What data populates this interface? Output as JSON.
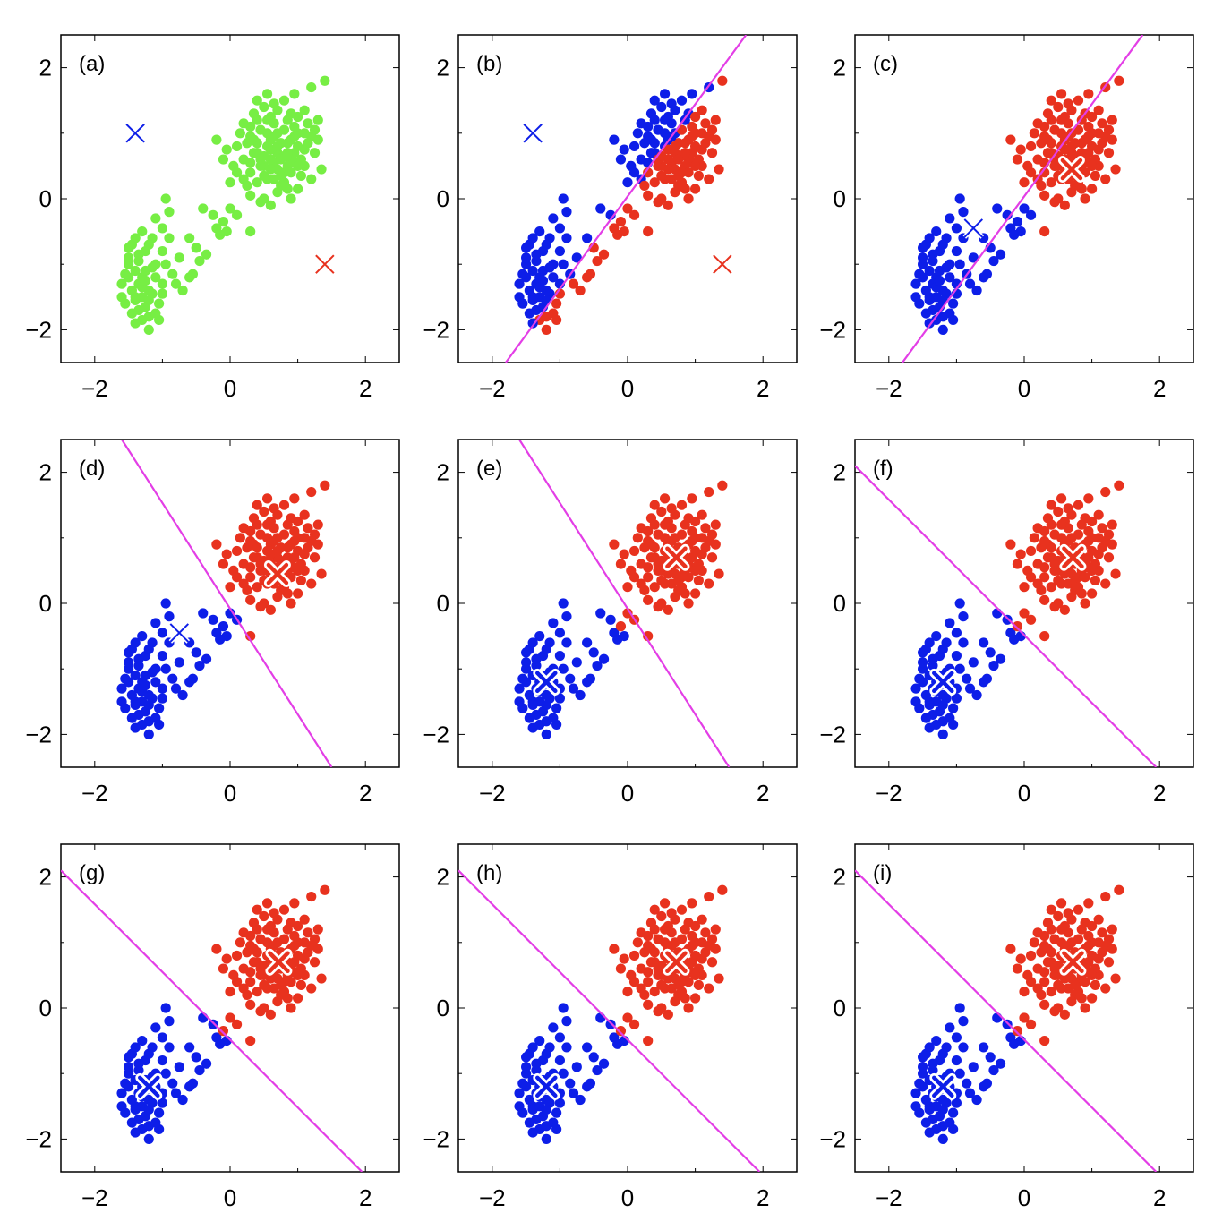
{
  "chart_data": [
    {
      "type": "scatter",
      "panel_label": "(a)",
      "xlim": [
        -2.5,
        2.5
      ],
      "ylim": [
        -2.5,
        2.5
      ],
      "xticks": [
        "−2",
        "0",
        "2"
      ],
      "yticks": [
        "−2",
        "0",
        "2"
      ],
      "point_color": "green",
      "blue_centroid": [
        -1.4,
        1.0
      ],
      "red_centroid": [
        1.4,
        -1.0
      ],
      "centroid_style": "thin",
      "boundary": null
    },
    {
      "type": "scatter",
      "panel_label": "(b)",
      "xlim": [
        -2.5,
        2.5
      ],
      "ylim": [
        -2.5,
        2.5
      ],
      "xticks": [
        "−2",
        "0",
        "2"
      ],
      "yticks": [
        "−2",
        "0",
        "2"
      ],
      "point_color": "boundary",
      "blue_centroid": [
        -1.4,
        1.0
      ],
      "red_centroid": [
        1.4,
        -1.0
      ],
      "centroid_style": "thin",
      "boundary": {
        "x1": -1.8,
        "y1": -2.5,
        "x2": 1.75,
        "y2": 2.5
      }
    },
    {
      "type": "scatter",
      "panel_label": "(c)",
      "xlim": [
        -2.5,
        2.5
      ],
      "ylim": [
        -2.5,
        2.5
      ],
      "xticks": [
        "−2",
        "0",
        "2"
      ],
      "yticks": [
        "−2",
        "0",
        "2"
      ],
      "point_color": "boundary",
      "blue_centroid": [
        -0.75,
        -0.45
      ],
      "red_centroid": [
        0.7,
        0.45
      ],
      "centroid_style": "mixed",
      "boundary": {
        "x1": -1.8,
        "y1": -2.5,
        "x2": 1.75,
        "y2": 2.5
      }
    },
    {
      "type": "scatter",
      "panel_label": "(d)",
      "xlim": [
        -2.5,
        2.5
      ],
      "ylim": [
        -2.5,
        2.5
      ],
      "xticks": [
        "−2",
        "0",
        "2"
      ],
      "yticks": [
        "−2",
        "0",
        "2"
      ],
      "point_color": "boundary",
      "blue_centroid": [
        -0.75,
        -0.45
      ],
      "red_centroid": [
        0.7,
        0.45
      ],
      "centroid_style": "mixed",
      "boundary": {
        "x1": -1.6,
        "y1": 2.5,
        "x2": 1.5,
        "y2": -2.5
      }
    },
    {
      "type": "scatter",
      "panel_label": "(e)",
      "xlim": [
        -2.5,
        2.5
      ],
      "ylim": [
        -2.5,
        2.5
      ],
      "xticks": [
        "−2",
        "0",
        "2"
      ],
      "yticks": [
        "−2",
        "0",
        "2"
      ],
      "point_color": "boundary",
      "blue_centroid": [
        -1.2,
        -1.2
      ],
      "red_centroid": [
        0.72,
        0.7
      ],
      "centroid_style": "bold",
      "boundary": {
        "x1": -1.6,
        "y1": 2.5,
        "x2": 1.5,
        "y2": -2.5
      }
    },
    {
      "type": "scatter",
      "panel_label": "(f)",
      "xlim": [
        -2.5,
        2.5
      ],
      "ylim": [
        -2.5,
        2.5
      ],
      "xticks": [
        "−2",
        "0",
        "2"
      ],
      "yticks": [
        "−2",
        "0",
        "2"
      ],
      "point_color": "boundary",
      "blue_centroid": [
        -1.2,
        -1.2
      ],
      "red_centroid": [
        0.72,
        0.7
      ],
      "centroid_style": "bold",
      "boundary": {
        "x1": -2.5,
        "y1": 2.1,
        "x2": 1.95,
        "y2": -2.5
      }
    },
    {
      "type": "scatter",
      "panel_label": "(g)",
      "xlim": [
        -2.5,
        2.5
      ],
      "ylim": [
        -2.5,
        2.5
      ],
      "xticks": [
        "−2",
        "0",
        "2"
      ],
      "yticks": [
        "−2",
        "0",
        "2"
      ],
      "point_color": "boundary",
      "blue_centroid": [
        -1.2,
        -1.2
      ],
      "red_centroid": [
        0.72,
        0.7
      ],
      "centroid_style": "bold",
      "boundary": {
        "x1": -2.5,
        "y1": 2.1,
        "x2": 1.95,
        "y2": -2.5
      }
    },
    {
      "type": "scatter",
      "panel_label": "(h)",
      "xlim": [
        -2.5,
        2.5
      ],
      "ylim": [
        -2.5,
        2.5
      ],
      "xticks": [
        "−2",
        "0",
        "2"
      ],
      "yticks": [
        "−2",
        "0",
        "2"
      ],
      "point_color": "boundary",
      "blue_centroid": [
        -1.2,
        -1.2
      ],
      "red_centroid": [
        0.72,
        0.7
      ],
      "centroid_style": "bold",
      "boundary": {
        "x1": -2.5,
        "y1": 2.1,
        "x2": 1.95,
        "y2": -2.5
      }
    },
    {
      "type": "scatter",
      "panel_label": "(i)",
      "xlim": [
        -2.5,
        2.5
      ],
      "ylim": [
        -2.5,
        2.5
      ],
      "xticks": [
        "−2",
        "0",
        "2"
      ],
      "yticks": [
        "−2",
        "0",
        "2"
      ],
      "point_color": "boundary",
      "blue_centroid": [
        -1.2,
        -1.2
      ],
      "red_centroid": [
        0.72,
        0.7
      ],
      "centroid_style": "bold",
      "boundary": {
        "x1": -2.5,
        "y1": 2.1,
        "x2": 1.95,
        "y2": -2.5
      }
    }
  ],
  "data_points": [
    [
      -1.4,
      -1.5
    ],
    [
      -1.3,
      -1.2
    ],
    [
      -1.5,
      -1.0
    ],
    [
      -1.2,
      -1.4
    ],
    [
      -1.35,
      -1.7
    ],
    [
      -1.6,
      -1.3
    ],
    [
      -1.1,
      -1.0
    ],
    [
      -1.25,
      -0.8
    ],
    [
      -1.45,
      -0.7
    ],
    [
      -1.3,
      -1.85
    ],
    [
      -1.2,
      -2.0
    ],
    [
      -1.55,
      -1.6
    ],
    [
      -1.0,
      -1.3
    ],
    [
      -1.15,
      -0.6
    ],
    [
      -1.5,
      -0.9
    ],
    [
      -1.4,
      -1.1
    ],
    [
      -1.3,
      -1.5
    ],
    [
      -1.05,
      -1.6
    ],
    [
      -1.2,
      -1.8
    ],
    [
      -1.6,
      -1.5
    ],
    [
      -1.35,
      -1.3
    ],
    [
      -1.25,
      -1.1
    ],
    [
      -1.45,
      -1.4
    ],
    [
      -1.1,
      -1.2
    ],
    [
      -1.0,
      -0.8
    ],
    [
      -0.9,
      -0.6
    ],
    [
      -0.95,
      -1.0
    ],
    [
      -1.3,
      -0.5
    ],
    [
      -1.5,
      -1.2
    ],
    [
      -1.4,
      -1.9
    ],
    [
      -1.15,
      -1.45
    ],
    [
      -1.25,
      -1.65
    ],
    [
      -1.05,
      -1.85
    ],
    [
      -0.85,
      -1.15
    ],
    [
      -1.55,
      -1.15
    ],
    [
      -1.35,
      -0.95
    ],
    [
      -1.2,
      -0.7
    ],
    [
      -1.0,
      -0.45
    ],
    [
      -0.9,
      -0.2
    ],
    [
      -0.95,
      0.0
    ],
    [
      -1.1,
      -0.3
    ],
    [
      -1.45,
      -1.75
    ],
    [
      -0.7,
      -1.4
    ],
    [
      -0.75,
      -0.9
    ],
    [
      -0.6,
      -0.6
    ],
    [
      -1.3,
      -1.35
    ],
    [
      -1.4,
      -1.55
    ],
    [
      -1.1,
      -1.75
    ],
    [
      -1.25,
      -1.25
    ],
    [
      -1.5,
      -0.75
    ],
    [
      -0.8,
      -1.3
    ],
    [
      -1.2,
      -1.55
    ],
    [
      -1.35,
      -0.85
    ],
    [
      -1.0,
      -1.45
    ],
    [
      -1.15,
      -1.05
    ],
    [
      -1.4,
      -0.6
    ],
    [
      -0.55,
      -1.15
    ],
    [
      -0.6,
      -1.2
    ],
    [
      -0.45,
      -0.95
    ],
    [
      -0.35,
      -0.85
    ],
    [
      -0.5,
      -0.75
    ],
    [
      -0.2,
      -0.45
    ],
    [
      -0.1,
      -0.35
    ],
    [
      -0.4,
      -0.15
    ],
    [
      -0.25,
      -0.25
    ],
    [
      -0.05,
      -0.5
    ],
    [
      0.3,
      -0.5
    ],
    [
      0.1,
      -0.25
    ],
    [
      -0.15,
      -0.55
    ],
    [
      0.0,
      -0.15
    ],
    [
      0.5,
      0.5
    ],
    [
      0.7,
      0.7
    ],
    [
      0.9,
      0.6
    ],
    [
      0.6,
      0.9
    ],
    [
      0.8,
      0.4
    ],
    [
      1.0,
      0.8
    ],
    [
      0.4,
      0.7
    ],
    [
      0.7,
      1.0
    ],
    [
      0.55,
      0.3
    ],
    [
      0.95,
      1.1
    ],
    [
      1.1,
      0.5
    ],
    [
      0.3,
      0.4
    ],
    [
      0.65,
      0.55
    ],
    [
      0.85,
      0.85
    ],
    [
      0.45,
      1.05
    ],
    [
      1.2,
      0.95
    ],
    [
      0.75,
      0.2
    ],
    [
      0.35,
      0.9
    ],
    [
      1.05,
      0.35
    ],
    [
      0.6,
      1.25
    ],
    [
      0.9,
      1.3
    ],
    [
      0.2,
      0.6
    ],
    [
      0.5,
      0.0
    ],
    [
      0.8,
      0.65
    ],
    [
      1.15,
      1.15
    ],
    [
      0.7,
      0.45
    ],
    [
      0.4,
      0.25
    ],
    [
      0.95,
      0.55
    ],
    [
      0.55,
      0.8
    ],
    [
      1.0,
      1.0
    ],
    [
      0.25,
      0.85
    ],
    [
      0.65,
      1.15
    ],
    [
      0.85,
      0.15
    ],
    [
      1.25,
      0.7
    ],
    [
      0.3,
      1.1
    ],
    [
      0.75,
      0.85
    ],
    [
      0.6,
      0.6
    ],
    [
      0.9,
      0.9
    ],
    [
      0.45,
      0.5
    ],
    [
      1.1,
      0.75
    ],
    [
      0.15,
      1.0
    ],
    [
      0.5,
      1.4
    ],
    [
      0.8,
      1.5
    ],
    [
      1.3,
      1.2
    ],
    [
      1.4,
      1.8
    ],
    [
      1.2,
      1.7
    ],
    [
      0.95,
      1.6
    ],
    [
      0.55,
      1.6
    ],
    [
      0.35,
      1.3
    ],
    [
      0.1,
      0.8
    ],
    [
      0.05,
      0.5
    ],
    [
      -0.2,
      0.9
    ],
    [
      -0.1,
      0.6
    ],
    [
      0.0,
      0.25
    ],
    [
      0.3,
      0.05
    ],
    [
      0.6,
      -0.1
    ],
    [
      0.9,
      0.0
    ],
    [
      1.2,
      0.3
    ],
    [
      1.35,
      0.45
    ],
    [
      1.3,
      0.9
    ],
    [
      1.1,
      1.35
    ],
    [
      0.7,
      1.35
    ],
    [
      0.4,
      1.2
    ],
    [
      0.2,
      0.3
    ],
    [
      0.45,
      -0.05
    ],
    [
      1.0,
      0.15
    ],
    [
      0.65,
      0.3
    ],
    [
      0.85,
      0.5
    ],
    [
      0.75,
      0.6
    ],
    [
      0.6,
      0.75
    ],
    [
      0.95,
      0.7
    ],
    [
      0.5,
      0.65
    ],
    [
      0.7,
      0.8
    ],
    [
      0.8,
      1.05
    ],
    [
      1.05,
      0.6
    ],
    [
      0.4,
      0.85
    ],
    [
      0.55,
      1.0
    ],
    [
      0.9,
      0.4
    ],
    [
      0.3,
      0.55
    ],
    [
      1.15,
      0.85
    ],
    [
      0.65,
      0.95
    ],
    [
      0.85,
      0.7
    ],
    [
      0.5,
      0.35
    ],
    [
      0.75,
      0.35
    ],
    [
      1.0,
      0.5
    ],
    [
      0.35,
      0.7
    ],
    [
      0.6,
      0.45
    ],
    [
      0.95,
      0.95
    ],
    [
      0.8,
      0.25
    ],
    [
      0.25,
      0.2
    ],
    [
      1.25,
      1.05
    ],
    [
      0.1,
      0.4
    ],
    [
      -0.05,
      0.75
    ],
    [
      0.7,
      0.1
    ],
    [
      0.45,
      0.6
    ],
    [
      0.85,
      1.2
    ],
    [
      1.1,
      1.0
    ],
    [
      0.55,
      1.2
    ],
    [
      0.3,
      0.95
    ],
    [
      0.2,
      1.15
    ],
    [
      1.0,
      1.25
    ],
    [
      0.65,
      1.45
    ],
    [
      0.4,
      1.5
    ]
  ],
  "colors": {
    "green": "#77ee44",
    "blue": "#0d1ee8",
    "red": "#e8321e",
    "boundary_line": "#e33ee6",
    "frame": "#000000"
  }
}
